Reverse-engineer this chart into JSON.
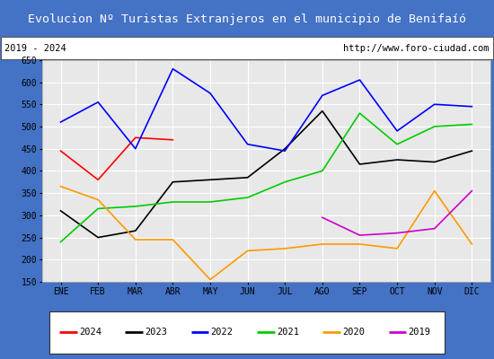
{
  "title": "Evolucion Nº Turistas Extranjeros en el municipio de Benifaíó",
  "subtitle_left": "2019 - 2024",
  "subtitle_right": "http://www.foro-ciudad.com",
  "months": [
    "ENE",
    "FEB",
    "MAR",
    "ABR",
    "MAY",
    "JUN",
    "JUL",
    "AGO",
    "SEP",
    "OCT",
    "NOV",
    "DIC"
  ],
  "ylim": [
    150,
    650
  ],
  "yticks": [
    150,
    200,
    250,
    300,
    350,
    400,
    450,
    500,
    550,
    600,
    650
  ],
  "series": {
    "2024": {
      "color": "#ff0000",
      "values": [
        445,
        380,
        475,
        470,
        null,
        null,
        null,
        null,
        null,
        null,
        null,
        null
      ]
    },
    "2023": {
      "color": "#000000",
      "values": [
        310,
        250,
        265,
        375,
        380,
        385,
        450,
        535,
        415,
        425,
        420,
        445
      ]
    },
    "2022": {
      "color": "#0000ff",
      "values": [
        510,
        555,
        450,
        630,
        575,
        460,
        445,
        570,
        605,
        490,
        550,
        545
      ]
    },
    "2021": {
      "color": "#00cc00",
      "values": [
        240,
        315,
        320,
        330,
        330,
        340,
        375,
        400,
        530,
        460,
        500,
        505
      ]
    },
    "2020": {
      "color": "#ff9900",
      "values": [
        365,
        335,
        245,
        245,
        155,
        220,
        225,
        235,
        235,
        225,
        355,
        235
      ]
    },
    "2019": {
      "color": "#cc00cc",
      "values": [
        null,
        null,
        null,
        null,
        null,
        null,
        null,
        295,
        255,
        260,
        270,
        355
      ]
    }
  },
  "title_bg_color": "#4472c4",
  "title_font_color": "#ffffff",
  "plot_bg_color": "#e8e8e8",
  "grid_color": "#ffffff",
  "border_color": "#4472c4",
  "subtitle_box_color": "#ffffff",
  "legend_order": [
    "2024",
    "2023",
    "2022",
    "2021",
    "2020",
    "2019"
  ]
}
